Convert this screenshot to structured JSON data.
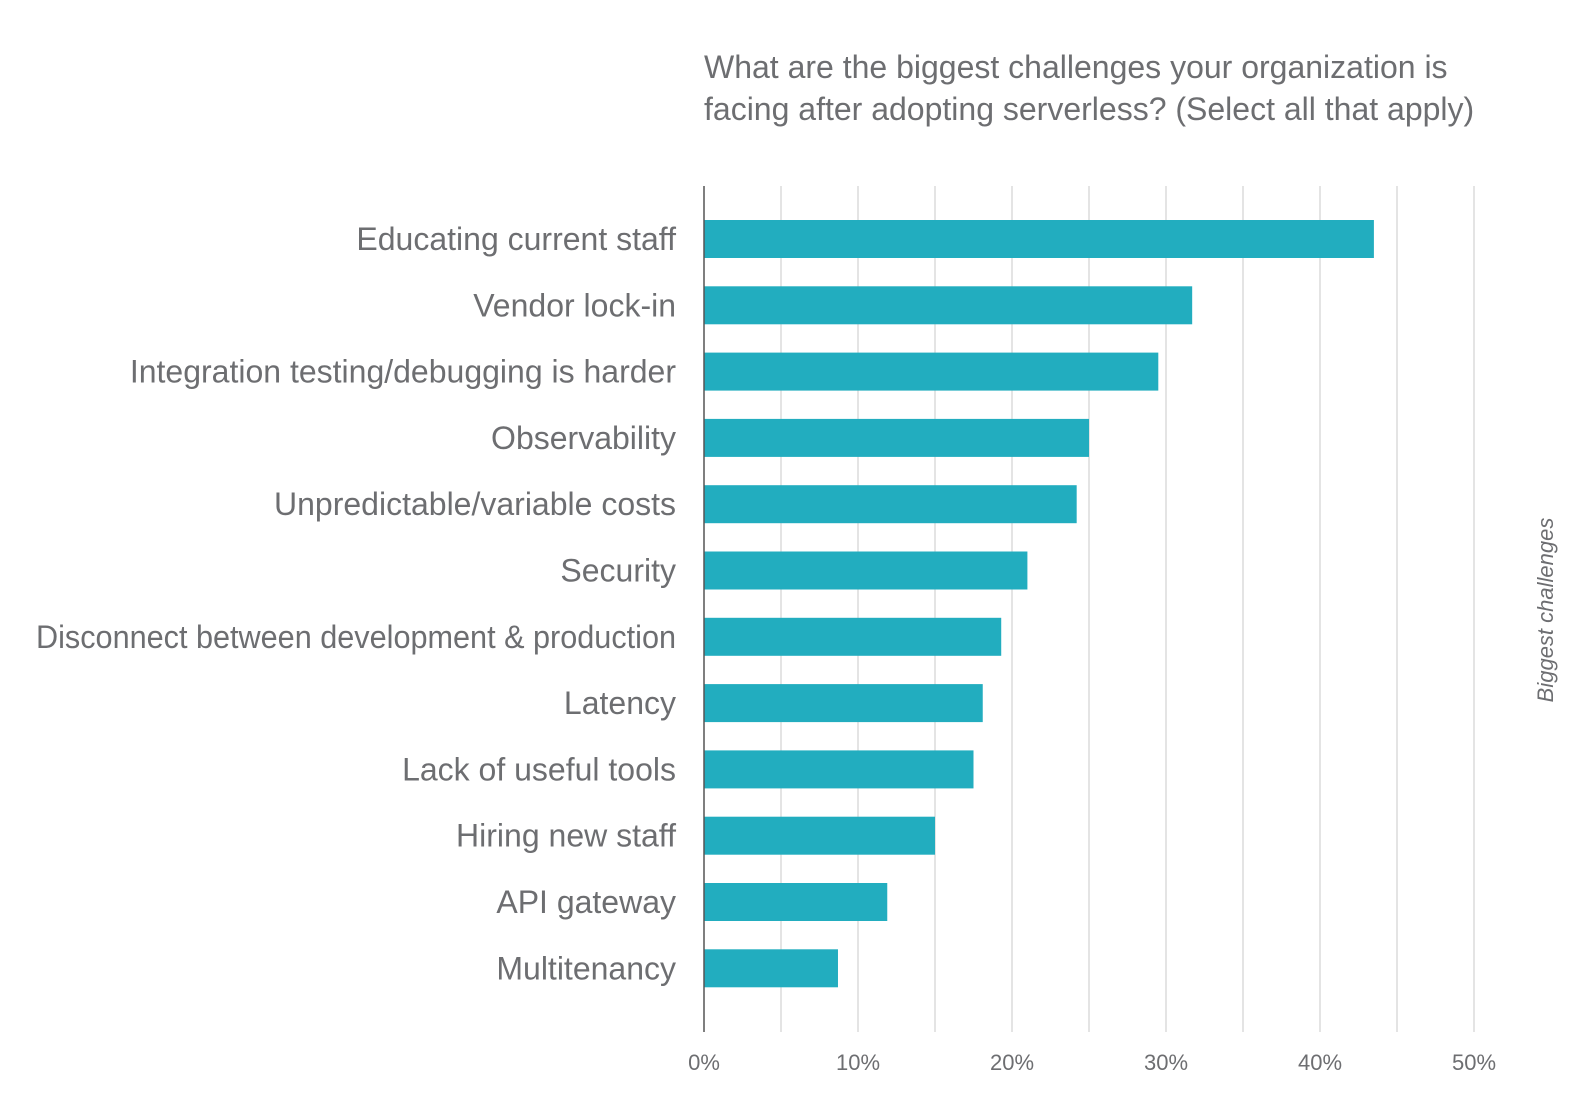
{
  "chart_data": {
    "type": "bar",
    "orientation": "horizontal",
    "title_lines": [
      "What are the biggest challenges your organization is",
      "facing after adopting serverless? (Select all that apply)"
    ],
    "ylabel": "Biggest challenges",
    "xlabel": "",
    "categories": [
      "Educating current staff",
      "Vendor lock-in",
      "Integration testing/debugging is harder",
      "Observability",
      "Unpredictable/variable costs",
      "Security",
      "Disconnect between development & production",
      "Latency",
      "Lack of useful tools",
      "Hiring new staff",
      "API gateway",
      "Multitenancy"
    ],
    "values": [
      43.5,
      31.7,
      29.5,
      25.0,
      24.2,
      21.0,
      19.3,
      18.1,
      17.5,
      15.0,
      11.9,
      8.7
    ],
    "unit": "%",
    "xlim": [
      0,
      50
    ],
    "xticks": [
      0,
      10,
      20,
      30,
      40,
      50
    ],
    "xtick_labels": [
      "0%",
      "10%",
      "20%",
      "30%",
      "40%",
      "50%"
    ],
    "minor_grid_step": 5,
    "grid": true,
    "bar_color": "#22adbf"
  }
}
